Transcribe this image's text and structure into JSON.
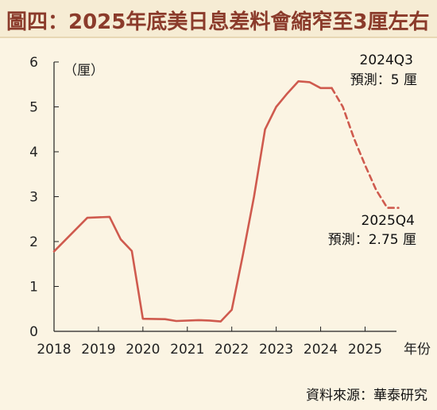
{
  "title": "圖四：2025年底美日息差料會縮窄至3厘左右",
  "source": "資料來源：華泰研究",
  "colors": {
    "background": "#fbf4e3",
    "title": "#8b3b2b",
    "line": "#cf5a4e"
  },
  "chart_data": {
    "type": "line",
    "title": "2025年底美日息差料會縮窄至3厘左右",
    "unit_label": "（厘）",
    "xlabel": "年份",
    "x_ticks": [
      "2018",
      "2019",
      "2020",
      "2021",
      "2022",
      "2023",
      "2024",
      "2025"
    ],
    "y_ticks": [
      "0",
      "1",
      "2",
      "3",
      "4",
      "5",
      "6"
    ],
    "ylim": [
      0,
      6
    ],
    "xlim": [
      2018.0,
      2025.85
    ],
    "grid": false,
    "series": [
      {
        "style": "solid",
        "points": [
          [
            2018.0,
            1.78
          ],
          [
            2018.75,
            2.53
          ],
          [
            2019.25,
            2.55
          ],
          [
            2019.5,
            2.05
          ],
          [
            2019.75,
            1.79
          ],
          [
            2020.0,
            0.28
          ],
          [
            2020.5,
            0.27
          ],
          [
            2020.75,
            0.23
          ],
          [
            2021.25,
            0.25
          ],
          [
            2021.5,
            0.24
          ],
          [
            2021.75,
            0.22
          ],
          [
            2022.0,
            0.48
          ],
          [
            2022.25,
            1.7
          ],
          [
            2022.5,
            3.0
          ],
          [
            2022.75,
            4.5
          ],
          [
            2023.0,
            5.0
          ],
          [
            2023.25,
            5.3
          ],
          [
            2023.5,
            5.57
          ],
          [
            2023.75,
            5.55
          ],
          [
            2024.0,
            5.42
          ],
          [
            2024.25,
            5.42
          ]
        ]
      },
      {
        "style": "dashed",
        "points": [
          [
            2024.25,
            5.42
          ],
          [
            2024.5,
            5.0
          ],
          [
            2024.75,
            4.3
          ],
          [
            2025.0,
            3.7
          ],
          [
            2025.25,
            3.15
          ],
          [
            2025.5,
            2.75
          ],
          [
            2025.75,
            2.75
          ]
        ]
      }
    ],
    "annotations": [
      {
        "lines": [
          "2024Q3",
          "預測：5 厘"
        ],
        "x": 2024.25,
        "y": 5.42
      },
      {
        "lines": [
          "2025Q4",
          "預測：2.75 厘"
        ],
        "x": 2025.75,
        "y": 2.75
      }
    ]
  }
}
